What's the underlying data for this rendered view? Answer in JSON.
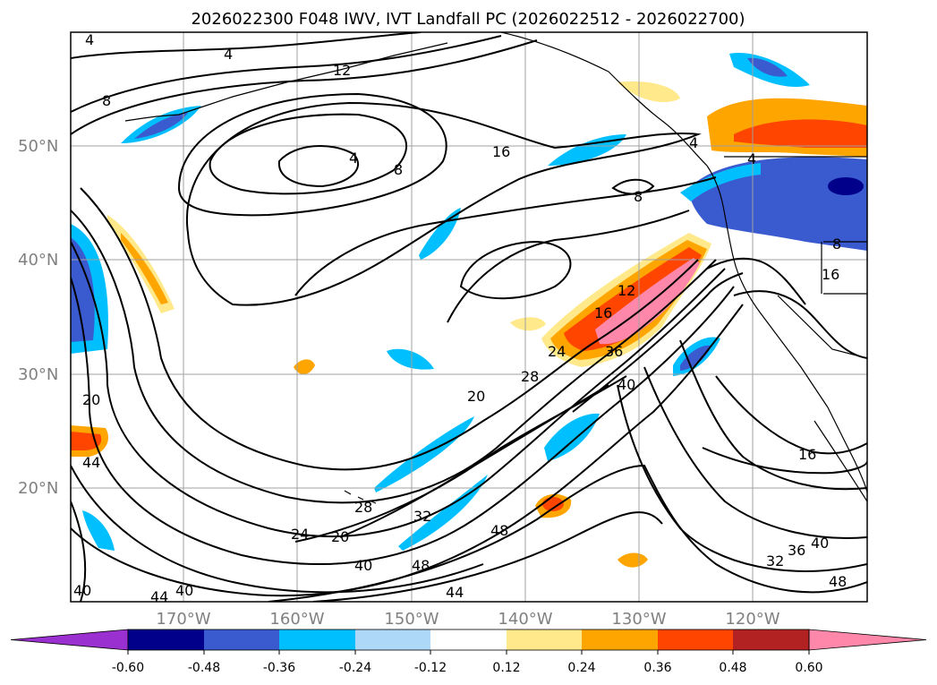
{
  "title": "2026022300 F048 IWV, IVT Landfall PC (2026022512 - 2026022700)",
  "latitude_labels": [
    "50°N",
    "40°N",
    "30°N",
    "20°N"
  ],
  "longitude_labels": [
    "170°W",
    "160°W",
    "150°W",
    "140°W",
    "130°W",
    "120°W"
  ],
  "colorbar": {
    "ticks": [
      "-0.60",
      "-0.48",
      "-0.36",
      "-0.24",
      "-0.12",
      "0.12",
      "0.24",
      "0.36",
      "0.48",
      "0.60"
    ],
    "colors": [
      "#9b30d0",
      "#00008b",
      "#3a5bd0",
      "#00bfff",
      "#add8f7",
      "#ffffff",
      "#ffe98a",
      "#ffa500",
      "#ff4500",
      "#b22222",
      "#ff88aa"
    ]
  },
  "contour_labels": [
    "4",
    "4",
    "12",
    "8",
    "4",
    "8",
    "16",
    "8",
    "4",
    "4",
    "8",
    "16",
    "12",
    "16",
    "24",
    "36",
    "28",
    "20",
    "40",
    "20",
    "44",
    "28",
    "32",
    "24",
    "20",
    "40",
    "48",
    "48",
    "44",
    "44",
    "40",
    "40",
    "16",
    "32",
    "36",
    "40",
    "48"
  ]
}
